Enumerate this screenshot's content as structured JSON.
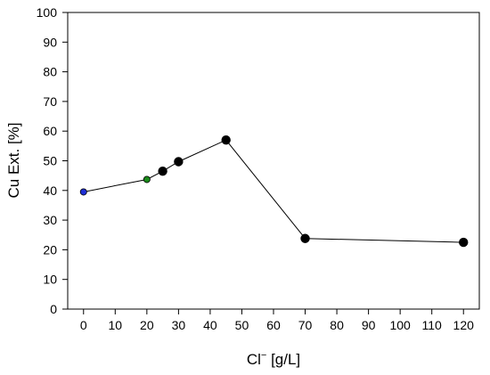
{
  "chart_data": {
    "type": "line",
    "title": "",
    "xlabel": "Cl",
    "xlabel_sup": "−",
    "xlabel_unit": " [g/L]",
    "ylabel": "Cu Ext. [%]",
    "xlim": [
      -5,
      125
    ],
    "ylim": [
      0,
      100
    ],
    "x_ticks": [
      0,
      10,
      20,
      30,
      40,
      50,
      60,
      70,
      80,
      90,
      100,
      110,
      120
    ],
    "y_ticks": [
      0,
      10,
      20,
      30,
      40,
      50,
      60,
      70,
      80,
      90,
      100
    ],
    "grid": false,
    "series": [
      {
        "x": [
          0,
          20,
          25,
          30,
          45,
          70,
          120
        ],
        "y": [
          39.5,
          43.7,
          46.5,
          49.7,
          57.0,
          23.8,
          22.5
        ],
        "point_colors": [
          "#1f2fd6",
          "#1a8a1a",
          "#000000",
          "#000000",
          "#000000",
          "#000000",
          "#000000"
        ],
        "point_sizes": [
          "small",
          "small",
          "large",
          "large",
          "large",
          "large",
          "large"
        ],
        "line_color": "#000000"
      }
    ]
  }
}
